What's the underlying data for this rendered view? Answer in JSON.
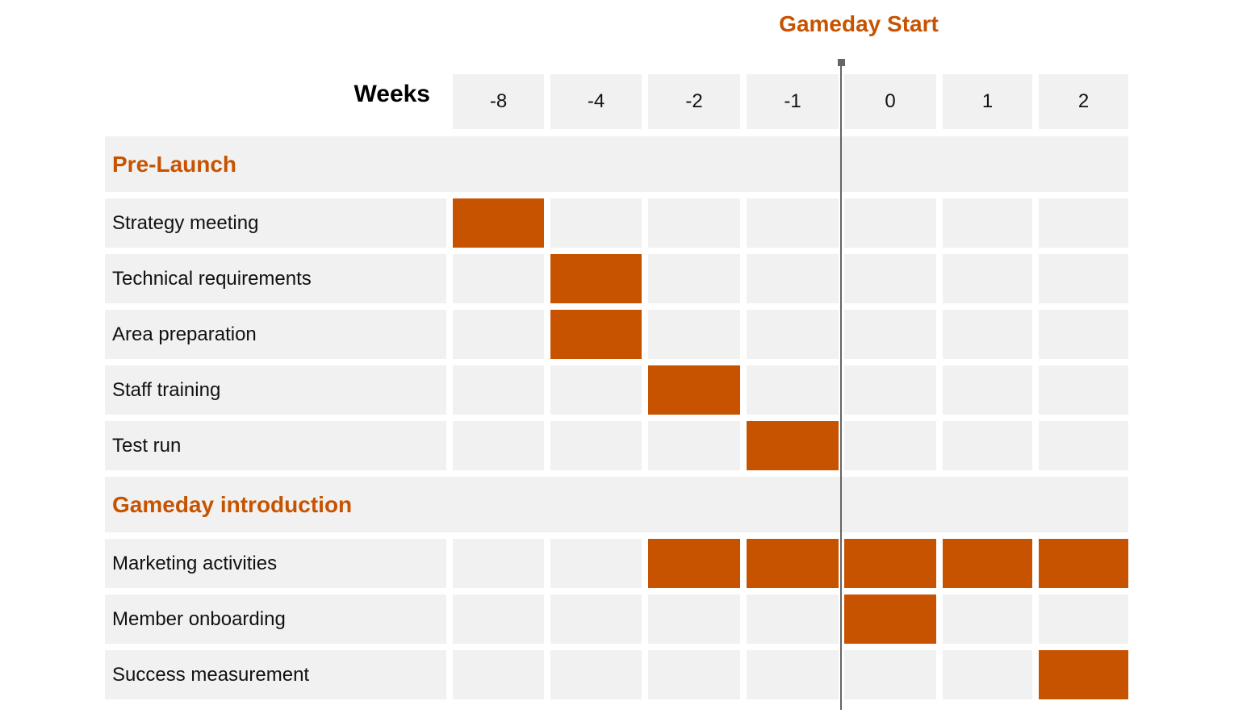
{
  "chart_data": {
    "type": "table",
    "marker_label": "Gameday Start",
    "marker_after_week": -1,
    "weeks_label": "Weeks",
    "weeks": [
      "-8",
      "-4",
      "-2",
      "-1",
      "0",
      "1",
      "2"
    ],
    "sections": [
      {
        "name": "Pre-Launch",
        "tasks": [
          {
            "name": "Strategy meeting",
            "active_weeks": [
              "-8"
            ]
          },
          {
            "name": "Technical requirements",
            "active_weeks": [
              "-4"
            ]
          },
          {
            "name": "Area preparation",
            "active_weeks": [
              "-4"
            ]
          },
          {
            "name": "Staff training",
            "active_weeks": [
              "-2"
            ]
          },
          {
            "name": "Test run",
            "active_weeks": [
              "-1"
            ]
          }
        ]
      },
      {
        "name": "Gameday introduction",
        "tasks": [
          {
            "name": "Marketing activities",
            "active_weeks": [
              "-2",
              "-1",
              "0",
              "1",
              "2"
            ]
          },
          {
            "name": "Member onboarding",
            "active_weeks": [
              "0"
            ]
          },
          {
            "name": "Success measurement",
            "active_weeks": [
              "2"
            ]
          }
        ]
      }
    ]
  },
  "colors": {
    "accent": "#c75300",
    "cell_background": "#f1f1f1",
    "marker_line": "#666666"
  }
}
